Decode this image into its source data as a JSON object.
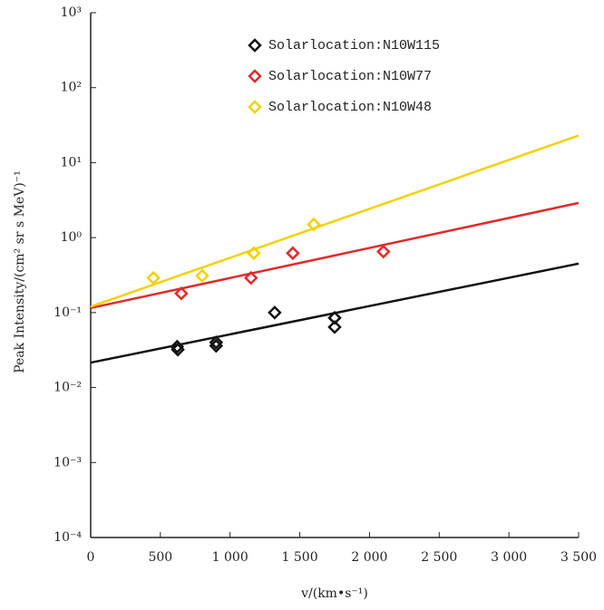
{
  "chart_data": {
    "type": "scatter",
    "x_label": "v/(km•s⁻¹)",
    "y_label": "Peak Intensity/(cm² sr s MeV)⁻¹",
    "log_y": true,
    "xlim": [
      0,
      3500
    ],
    "xticks": [
      0,
      500,
      {
        "value": 1000,
        "label": "1 000"
      },
      {
        "value": 1500,
        "label": "1 500"
      },
      {
        "value": 2000,
        "label": "2 000"
      },
      {
        "value": 2500,
        "label": "2 500"
      },
      {
        "value": 3000,
        "label": "3 000"
      },
      {
        "value": 3500,
        "label": "3 500"
      }
    ],
    "ylim": [
      0.0001,
      1000
    ],
    "yticks": [
      {
        "value": 0.0001,
        "label": "10⁻⁴"
      },
      {
        "value": 0.001,
        "label": "10⁻³"
      },
      {
        "value": 0.01,
        "label": "10⁻²"
      },
      {
        "value": 0.1,
        "label": "10⁻¹"
      },
      {
        "value": 1,
        "label": "10⁰"
      },
      {
        "value": 10,
        "label": "10¹"
      },
      {
        "value": 100,
        "label": "10²"
      },
      {
        "value": 1000,
        "label": "10³"
      }
    ],
    "series": [
      {
        "name": "Solarlocation:N10W115",
        "color": "#111111",
        "x": [
          620,
          625,
          900,
          900,
          1320,
          1750,
          1750
        ],
        "values": [
          0.035,
          0.032,
          0.04,
          0.036,
          0.1,
          0.085,
          0.064
        ],
        "fit": {
          "x": [
            0,
            3500
          ],
          "values": [
            0.0215,
            0.45
          ]
        }
      },
      {
        "name": "Solarlocation:N10W77",
        "color": "#e02a2a",
        "x": [
          650,
          1150,
          1450,
          2100
        ],
        "values": [
          0.18,
          0.29,
          0.62,
          0.65
        ],
        "fit": {
          "x": [
            0,
            3500
          ],
          "values": [
            0.115,
            2.9
          ]
        }
      },
      {
        "name": "Solarlocation:N10W48",
        "color": "#f5d000",
        "x": [
          450,
          800,
          1170,
          1600
        ],
        "values": [
          0.29,
          0.31,
          0.62,
          1.5
        ],
        "fit": {
          "x": [
            0,
            3500
          ],
          "values": [
            0.12,
            23
          ]
        }
      }
    ]
  }
}
